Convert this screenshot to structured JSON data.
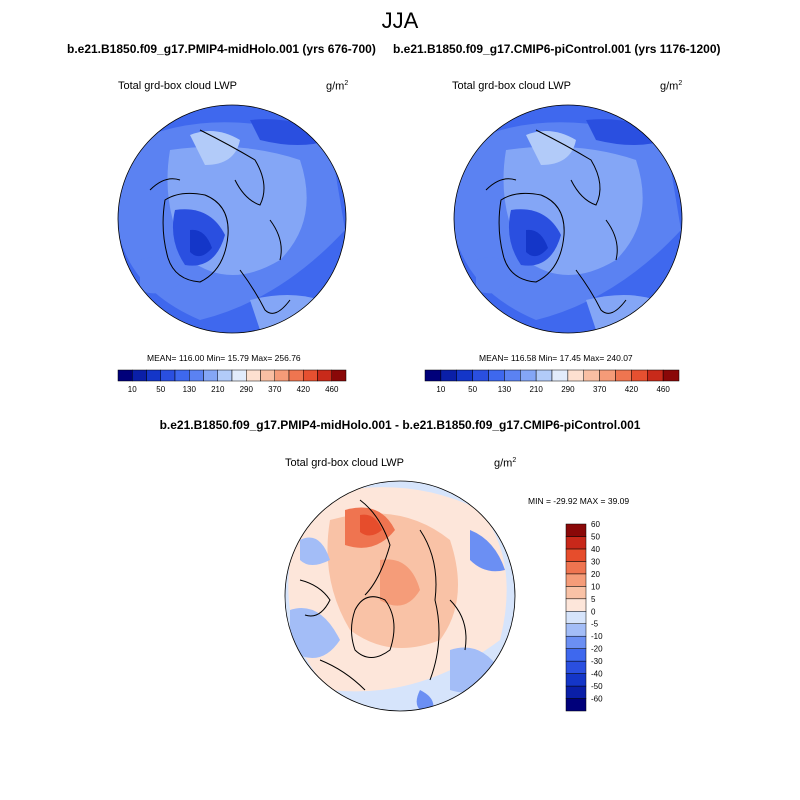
{
  "figure": {
    "season": "JJA",
    "panels": [
      {
        "case": "b.e21.B1850.f09_g17.PMIP4-midHolo.001 (yrs 676-700)",
        "variable": "Total grd-box cloud LWP",
        "units_base": "g/m",
        "units_exp": "2",
        "stats": "MEAN= 116.00  Min=  15.79  Max= 256.76"
      },
      {
        "case": "b.e21.B1850.f09_g17.CMIP6-piControl.001 (yrs 1176-1200)",
        "variable": "Total grd-box cloud LWP",
        "units_base": "g/m",
        "units_exp": "2",
        "stats": "MEAN= 116.58  Min=  17.45  Max= 240.07"
      }
    ],
    "difference": {
      "title": "b.e21.B1850.f09_g17.PMIP4-midHolo.001 - b.e21.B1850.f09_g17.CMIP6-piControl.001",
      "variable": "Total grd-box cloud LWP",
      "units_base": "g/m",
      "units_exp": "2",
      "minmax": "MIN = -29.92 MAX =  39.09"
    }
  },
  "chart_data": [
    {
      "type": "heatmap",
      "projection": "north polar stereographic",
      "title": "b.e21.B1850.f09_g17.PMIP4-midHolo.001 (yrs 676-700)",
      "variable": "Total grd-box cloud LWP",
      "units": "g/m^2",
      "mean": 116.0,
      "min": 15.79,
      "max": 256.76,
      "colorbar": {
        "orientation": "horizontal",
        "levels": [
          10,
          30,
          50,
          90,
          130,
          170,
          210,
          250,
          290,
          330,
          370,
          400,
          420,
          440,
          460
        ],
        "tick_labels": [
          "10",
          "50",
          "130",
          "210",
          "290",
          "370",
          "420",
          "460"
        ],
        "colors": [
          "#00007a",
          "#0a1fa8",
          "#1436c8",
          "#2a4fe0",
          "#3e68ee",
          "#5b82f2",
          "#84a6f6",
          "#b2cbf9",
          "#e2ecfc",
          "#fde0d0",
          "#f9bfa3",
          "#f59b78",
          "#ef7550",
          "#e65030",
          "#c82a1a",
          "#8a0808"
        ]
      }
    },
    {
      "type": "heatmap",
      "projection": "north polar stereographic",
      "title": "b.e21.B1850.f09_g17.CMIP6-piControl.001 (yrs 1176-1200)",
      "variable": "Total grd-box cloud LWP",
      "units": "g/m^2",
      "mean": 116.58,
      "min": 17.45,
      "max": 240.07,
      "colorbar": {
        "orientation": "horizontal",
        "levels": [
          10,
          30,
          50,
          90,
          130,
          170,
          210,
          250,
          290,
          330,
          370,
          400,
          420,
          440,
          460
        ],
        "tick_labels": [
          "10",
          "50",
          "130",
          "210",
          "290",
          "370",
          "420",
          "460"
        ],
        "colors": [
          "#00007a",
          "#0a1fa8",
          "#1436c8",
          "#2a4fe0",
          "#3e68ee",
          "#5b82f2",
          "#84a6f6",
          "#b2cbf9",
          "#e2ecfc",
          "#fde0d0",
          "#f9bfa3",
          "#f59b78",
          "#ef7550",
          "#e65030",
          "#c82a1a",
          "#8a0808"
        ]
      }
    },
    {
      "type": "heatmap",
      "projection": "north polar stereographic",
      "title": "b.e21.B1850.f09_g17.PMIP4-midHolo.001 - b.e21.B1850.f09_g17.CMIP6-piControl.001",
      "variable": "Total grd-box cloud LWP",
      "units": "g/m^2",
      "min": -29.92,
      "max": 39.09,
      "colorbar": {
        "orientation": "vertical",
        "levels": [
          -60,
          -50,
          -40,
          -30,
          -20,
          -10,
          -5,
          0,
          5,
          10,
          20,
          30,
          40,
          50,
          60
        ],
        "tick_labels": [
          "60",
          "50",
          "40",
          "30",
          "20",
          "10",
          "5",
          "0",
          "-5",
          "-10",
          "-20",
          "-30",
          "-40",
          "-50",
          "-60"
        ],
        "colors": [
          "#00007a",
          "#0a1fa8",
          "#1436c8",
          "#2a4fe0",
          "#3e68ee",
          "#6b8ff3",
          "#a3bdf7",
          "#d6e4fb",
          "#fde6da",
          "#f9c2a6",
          "#f59c79",
          "#ef7450",
          "#e64d2c",
          "#c8281a",
          "#8a0808"
        ]
      }
    }
  ]
}
